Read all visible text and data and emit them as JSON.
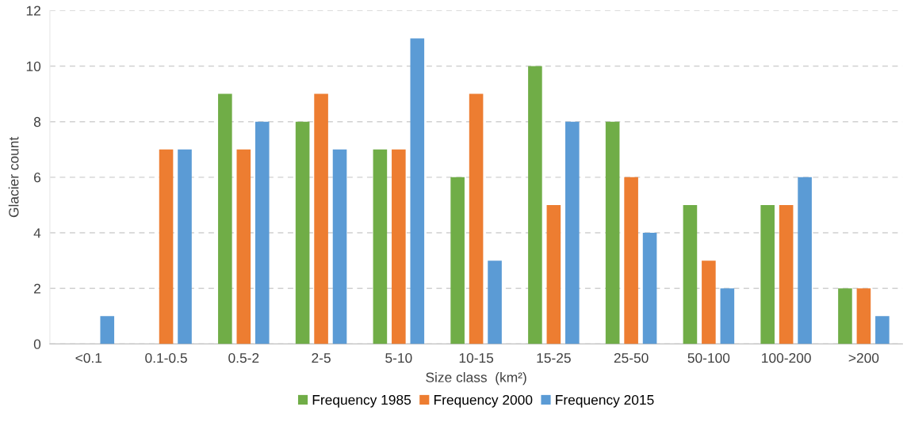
{
  "chart_data": {
    "type": "bar",
    "xlabel": "Size class  (km²)",
    "ylabel": "Glacier count",
    "categories": [
      "<0.1",
      "0.1-0.5",
      "0.5-2",
      "2-5",
      "5-10",
      "10-15",
      "15-25",
      "25-50",
      "50-100",
      "100-200",
      ">200"
    ],
    "series": [
      {
        "name": "Frequency 1985",
        "color": "#70ad47",
        "values": [
          0,
          0,
          9,
          8,
          7,
          6,
          10,
          8,
          5,
          5,
          2
        ]
      },
      {
        "name": "Frequency 2000",
        "color": "#ed7d31",
        "values": [
          0,
          7,
          7,
          9,
          7,
          9,
          5,
          6,
          3,
          5,
          2
        ]
      },
      {
        "name": "Frequency 2015",
        "color": "#5b9bd5",
        "values": [
          1,
          7,
          8,
          7,
          11,
          3,
          8,
          4,
          2,
          6,
          1
        ]
      }
    ],
    "ylim": [
      0,
      12
    ],
    "yticks": [
      0,
      2,
      4,
      6,
      8,
      10,
      12
    ],
    "grid": "y",
    "legend": "bottom"
  }
}
